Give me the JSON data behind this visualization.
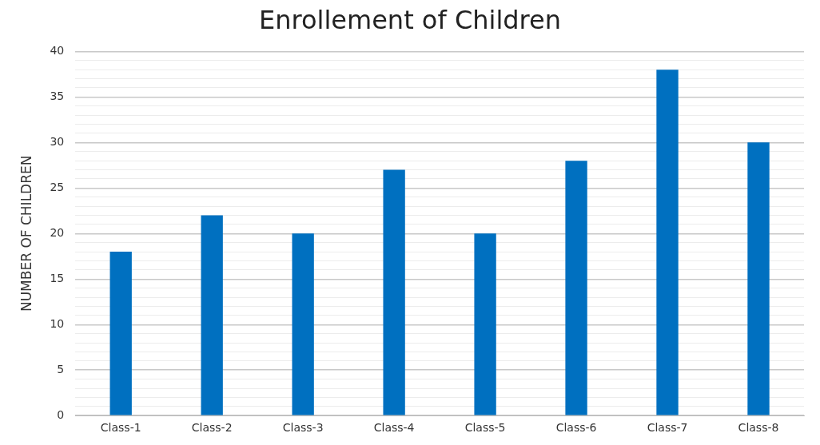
{
  "chart_data": {
    "type": "bar",
    "title": "Enrollement of Children",
    "ylabel": "NUMBER OF CHILDREN",
    "categories": [
      "Class-1",
      "Class-2",
      "Class-3",
      "Class-4",
      "Class-5",
      "Class-6",
      "Class-7",
      "Class-8"
    ],
    "values": [
      18,
      22,
      20,
      27,
      20,
      28,
      38,
      30
    ],
    "color": "#0070c0",
    "ylim": [
      0,
      40
    ],
    "yticks": [
      0,
      {
        "value": 1,
        "label": null
      },
      {
        "value": 2,
        "label": null
      },
      {
        "value": 3,
        "label": null
      },
      {
        "value": 4,
        "label": null
      },
      5,
      {
        "value": 6,
        "label": null
      },
      {
        "value": 7,
        "label": null
      },
      {
        "value": 8,
        "label": null
      },
      {
        "value": 9,
        "label": null
      },
      10,
      {
        "value": 11,
        "label": null
      },
      {
        "value": 12,
        "label": null
      },
      {
        "value": 13,
        "label": null
      },
      {
        "value": 14,
        "label": null
      },
      15,
      {
        "value": 16,
        "label": null
      },
      {
        "value": 17,
        "label": null
      },
      {
        "value": 18,
        "label": null
      },
      {
        "value": 19,
        "label": null
      },
      20,
      {
        "value": 21,
        "label": null
      },
      {
        "value": 22,
        "label": null
      },
      {
        "value": 23,
        "label": null
      },
      {
        "value": 24,
        "label": null
      },
      25,
      {
        "value": 26,
        "label": null
      },
      {
        "value": 27,
        "label": null
      },
      {
        "value": 28,
        "label": null
      },
      {
        "value": 29,
        "label": null
      },
      30,
      {
        "value": 31,
        "label": null
      },
      {
        "value": 32,
        "label": null
      },
      {
        "value": 33,
        "label": null
      },
      {
        "value": 34,
        "label": null
      },
      35,
      {
        "value": 36,
        "label": null
      },
      {
        "value": 37,
        "label": null
      },
      {
        "value": 38,
        "label": null
      },
      {
        "value": 39,
        "label": null
      },
      40
    ],
    "grid": "y"
  }
}
